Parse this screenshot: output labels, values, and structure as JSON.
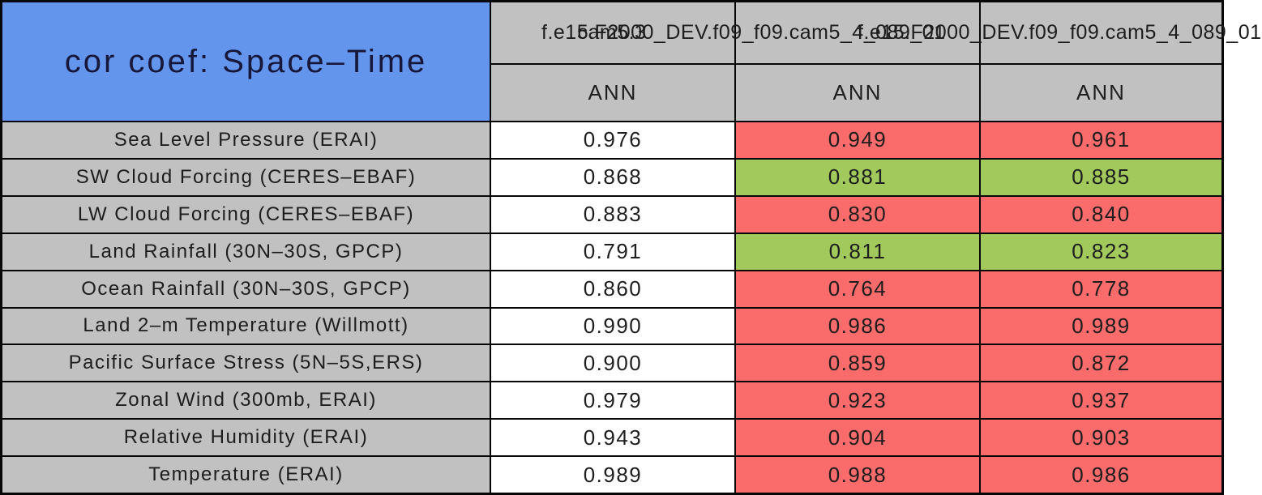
{
  "title": "cor coef: Space–Time",
  "header": {
    "col1_model": "cam5.3",
    "col2_model": "f.e15.F2000_DEV.f09_f09.cam5_4_089_01",
    "col3_model": "f.e15.F2000_DEV.f09_f09.cam5_4_089_01",
    "season": "ANN"
  },
  "colors": {
    "title_blue": "#6495ed",
    "header_gray": "#c1c1c1",
    "highlight_red": "#fa6b6b",
    "highlight_green": "#a1c95c",
    "cell_white": "#ffffff",
    "border_black": "#070707"
  },
  "rows": [
    {
      "label": "Sea Level Pressure (ERAI)",
      "values": [
        "0.976",
        "0.949",
        "0.961"
      ],
      "cell_colors": [
        "white",
        "red",
        "red"
      ]
    },
    {
      "label": "SW Cloud Forcing (CERES–EBAF)",
      "values": [
        "0.868",
        "0.881",
        "0.885"
      ],
      "cell_colors": [
        "white",
        "green",
        "green"
      ]
    },
    {
      "label": "LW Cloud Forcing (CERES–EBAF)",
      "values": [
        "0.883",
        "0.830",
        "0.840"
      ],
      "cell_colors": [
        "white",
        "red",
        "red"
      ]
    },
    {
      "label": "Land Rainfall (30N–30S, GPCP)",
      "values": [
        "0.791",
        "0.811",
        "0.823"
      ],
      "cell_colors": [
        "white",
        "green",
        "green"
      ]
    },
    {
      "label": "Ocean Rainfall (30N–30S, GPCP)",
      "values": [
        "0.860",
        "0.764",
        "0.778"
      ],
      "cell_colors": [
        "white",
        "red",
        "red"
      ]
    },
    {
      "label": "Land 2–m Temperature (Willmott)",
      "values": [
        "0.990",
        "0.986",
        "0.989"
      ],
      "cell_colors": [
        "white",
        "red",
        "red"
      ]
    },
    {
      "label": "Pacific Surface Stress (5N–5S,ERS)",
      "values": [
        "0.900",
        "0.859",
        "0.872"
      ],
      "cell_colors": [
        "white",
        "red",
        "red"
      ]
    },
    {
      "label": "Zonal Wind (300mb, ERAI)",
      "values": [
        "0.979",
        "0.923",
        "0.937"
      ],
      "cell_colors": [
        "white",
        "red",
        "red"
      ]
    },
    {
      "label": "Relative Humidity (ERAI)",
      "values": [
        "0.943",
        "0.904",
        "0.903"
      ],
      "cell_colors": [
        "white",
        "red",
        "red"
      ]
    },
    {
      "label": "Temperature (ERAI)",
      "values": [
        "0.989",
        "0.988",
        "0.986"
      ],
      "cell_colors": [
        "white",
        "red",
        "red"
      ]
    }
  ],
  "chart_data": {
    "type": "table",
    "title": "cor coef: Space–Time",
    "season": "ANN",
    "columns": [
      "cam5.3",
      "f.e15.F2000_DEV.f09_f09.cam5_4_089_01",
      "f.e15.F2000_DEV.f09_f09.cam5_4_089_01"
    ],
    "row_labels": [
      "Sea Level Pressure (ERAI)",
      "SW Cloud Forcing (CERES–EBAF)",
      "LW Cloud Forcing (CERES–EBAF)",
      "Land Rainfall (30N–30S, GPCP)",
      "Ocean Rainfall (30N–30S, GPCP)",
      "Land 2–m Temperature (Willmott)",
      "Pacific Surface Stress (5N–5S,ERS)",
      "Zonal Wind (300mb, ERAI)",
      "Relative Humidity (ERAI)",
      "Temperature (ERAI)"
    ],
    "values": [
      [
        0.976,
        0.949,
        0.961
      ],
      [
        0.868,
        0.881,
        0.885
      ],
      [
        0.883,
        0.83,
        0.84
      ],
      [
        0.791,
        0.811,
        0.823
      ],
      [
        0.86,
        0.764,
        0.778
      ],
      [
        0.99,
        0.986,
        0.989
      ],
      [
        0.9,
        0.859,
        0.872
      ],
      [
        0.979,
        0.923,
        0.937
      ],
      [
        0.943,
        0.904,
        0.903
      ],
      [
        0.989,
        0.988,
        0.986
      ]
    ],
    "highlight_meaning": {
      "red": "worse than control column",
      "green": "better than control column",
      "white": "control/reference value"
    }
  }
}
